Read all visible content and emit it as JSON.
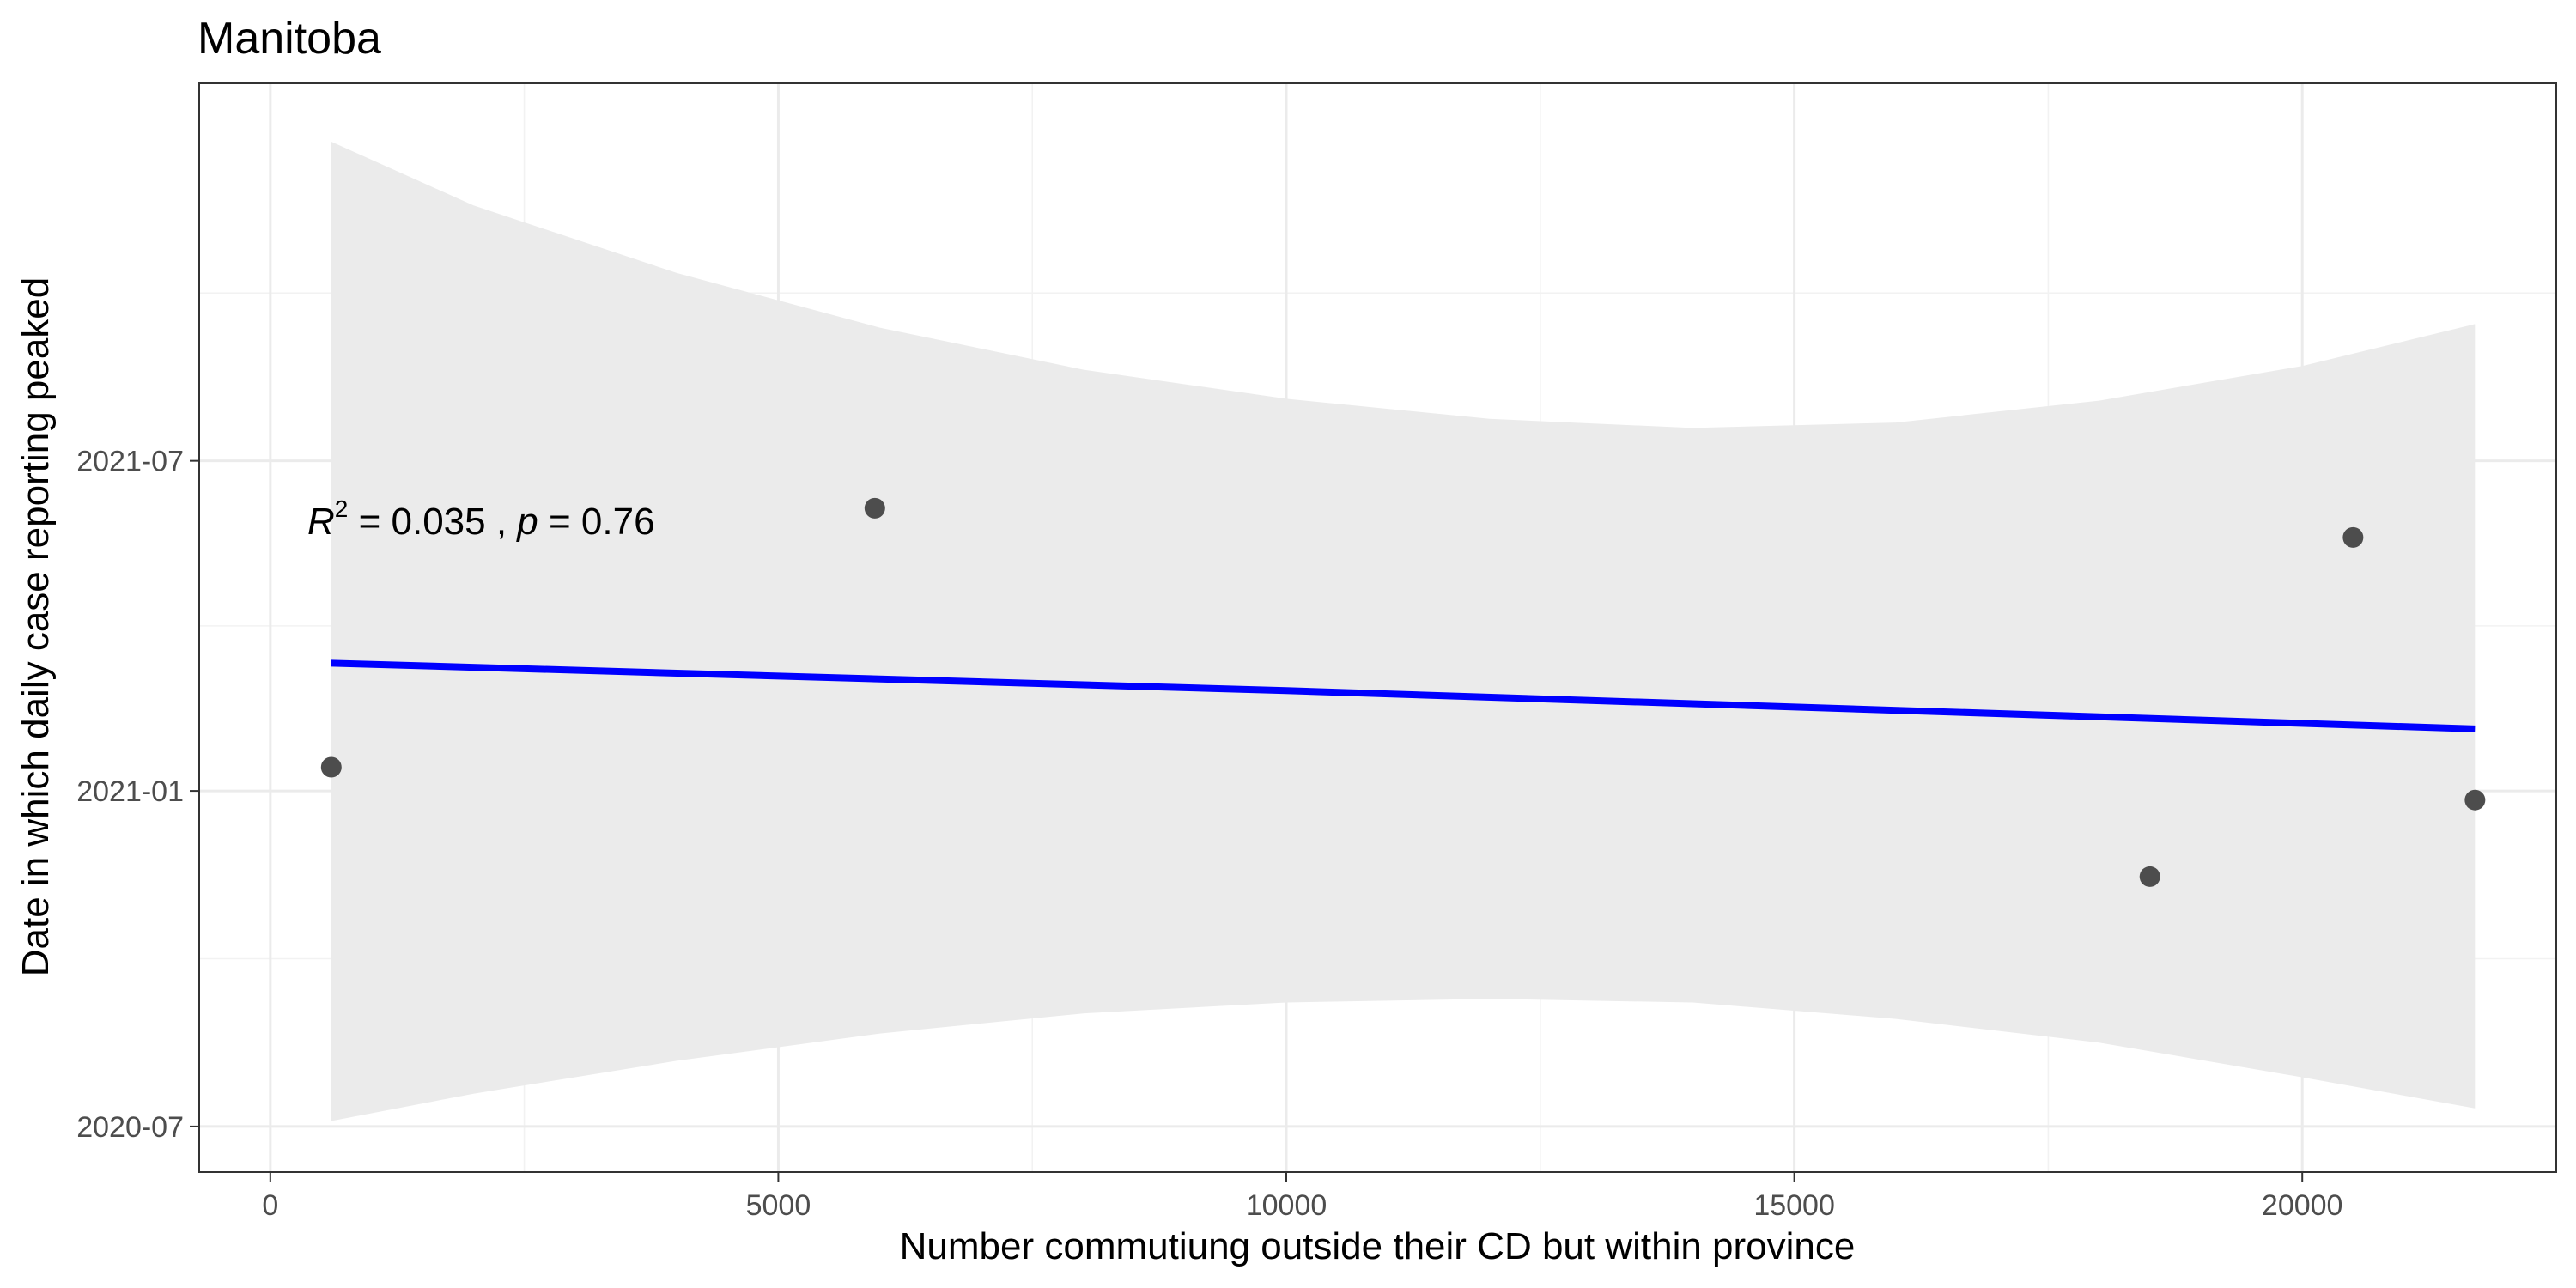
{
  "chart_data": {
    "type": "scatter",
    "title": "Manitoba",
    "xlabel": "Number commutiung outside their CD but within province",
    "ylabel": "Date in which daily case reporting peaked",
    "xlim": [
      -700,
      22500
    ],
    "ylim": [
      "2020-06-06",
      "2022-01-24"
    ],
    "x_ticks": [
      0,
      5000,
      10000,
      15000,
      20000
    ],
    "x_tick_labels": [
      "0",
      "5000",
      "10000",
      "15000",
      "20000"
    ],
    "y_ticks": [
      "2020-07-01",
      "2021-01-01",
      "2021-07-01"
    ],
    "y_tick_labels": [
      "2020-07",
      "2021-01",
      "2021-07"
    ],
    "grid": true,
    "points": [
      {
        "x": 600,
        "y": "2021-01-14"
      },
      {
        "x": 5950,
        "y": "2021-06-05"
      },
      {
        "x": 18500,
        "y": "2020-11-15"
      },
      {
        "x": 20500,
        "y": "2021-05-20"
      },
      {
        "x": 21700,
        "y": "2020-12-27"
      }
    ],
    "fit": {
      "method": "linear",
      "color": "#0000ff",
      "line": [
        {
          "x": 600,
          "y": "2021-03-12"
        },
        {
          "x": 10000,
          "y": "2021-02-25"
        },
        {
          "x": 21700,
          "y": "2021-02-04"
        }
      ],
      "ci_upper": [
        {
          "x": 600,
          "y": "2021-12-23"
        },
        {
          "x": 2000,
          "y": "2021-11-18"
        },
        {
          "x": 4000,
          "y": "2021-10-12"
        },
        {
          "x": 6000,
          "y": "2021-09-12"
        },
        {
          "x": 8000,
          "y": "2021-08-20"
        },
        {
          "x": 10000,
          "y": "2021-08-04"
        },
        {
          "x": 12000,
          "y": "2021-07-24"
        },
        {
          "x": 14000,
          "y": "2021-07-19"
        },
        {
          "x": 16000,
          "y": "2021-07-22"
        },
        {
          "x": 18000,
          "y": "2021-08-03"
        },
        {
          "x": 20000,
          "y": "2021-08-22"
        },
        {
          "x": 21700,
          "y": "2021-09-14"
        }
      ],
      "ci_lower": [
        {
          "x": 600,
          "y": "2020-07-04"
        },
        {
          "x": 2000,
          "y": "2020-07-19"
        },
        {
          "x": 4000,
          "y": "2020-08-06"
        },
        {
          "x": 6000,
          "y": "2020-08-21"
        },
        {
          "x": 8000,
          "y": "2020-09-01"
        },
        {
          "x": 10000,
          "y": "2020-09-07"
        },
        {
          "x": 12000,
          "y": "2020-09-09"
        },
        {
          "x": 14000,
          "y": "2020-09-07"
        },
        {
          "x": 16000,
          "y": "2020-08-29"
        },
        {
          "x": 18000,
          "y": "2020-08-16"
        },
        {
          "x": 20000,
          "y": "2020-07-28"
        },
        {
          "x": 21700,
          "y": "2020-07-11"
        }
      ]
    },
    "annotation": {
      "r_symbol": "R",
      "r_superscript": "2",
      "r_value": " = 0.035 , ",
      "p_symbol": "p",
      "p_value": " = 0.76"
    },
    "colors": {
      "points": "#4d4d4d",
      "ribbon": "#ebebeb",
      "panel_border": "#333333"
    }
  }
}
